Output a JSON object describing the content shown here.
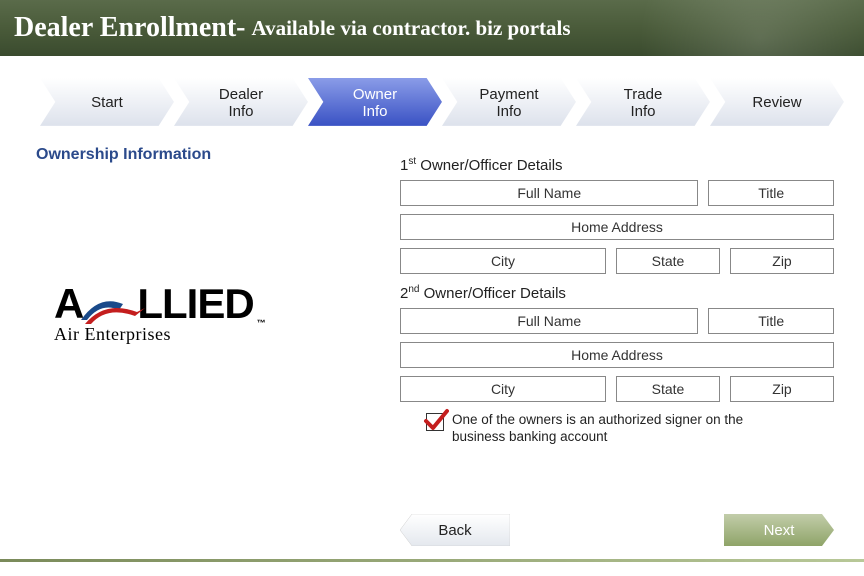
{
  "header": {
    "title_main": "Dealer Enrollment-",
    "title_sub": "Available via contractor. biz portals",
    "bg_gradient": [
      "#5a6b4a",
      "#3a4b2e"
    ]
  },
  "steps": [
    {
      "label": "Start",
      "style": "light",
      "active": false
    },
    {
      "label": "Dealer\nInfo",
      "style": "light",
      "active": false
    },
    {
      "label": "Owner\nInfo",
      "style": "blue",
      "active": true
    },
    {
      "label": "Payment\nInfo",
      "style": "light",
      "active": false
    },
    {
      "label": "Trade\nInfo",
      "style": "light",
      "active": false
    },
    {
      "label": "Review",
      "style": "light",
      "active": false
    }
  ],
  "section_title": "Ownership Information",
  "logo": {
    "line1": "ALLIED",
    "line2": "Air Enterprises",
    "trademark": "™"
  },
  "owners": [
    {
      "heading_html": "1st Owner/Officer Details",
      "full_name_placeholder": "Full Name",
      "title_placeholder": "Title",
      "address_placeholder": "Home Address",
      "city_placeholder": "City",
      "state_placeholder": "State",
      "zip_placeholder": "Zip"
    },
    {
      "heading_html": "2nd Owner/Officer Details",
      "full_name_placeholder": "Full Name",
      "title_placeholder": "Title",
      "address_placeholder": "Home Address",
      "city_placeholder": "City",
      "state_placeholder": "State",
      "zip_placeholder": "Zip"
    }
  ],
  "checkbox": {
    "checked": true,
    "label": "One of the owners is an authorized signer on the business banking account",
    "check_color": "#c41e1e"
  },
  "nav": {
    "back": "Back",
    "next": "Next"
  },
  "colors": {
    "step_light_top": "#ffffff",
    "step_light_bottom": "#e2e6ee",
    "step_blue_top": "#7d8fe0",
    "step_blue_bottom": "#3a52c4",
    "section_title": "#2b4a8b",
    "field_border": "#888888",
    "next_btn_top": "#b8c49a",
    "next_btn_bottom": "#8fa468"
  }
}
